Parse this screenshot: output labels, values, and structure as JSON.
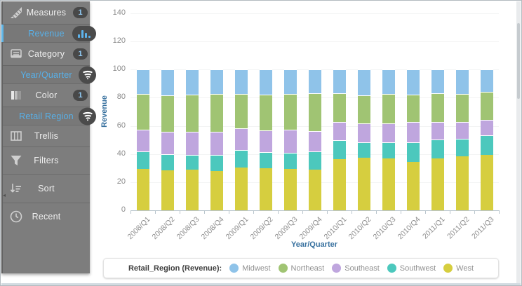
{
  "sidebar": {
    "items": [
      {
        "label": "Measures",
        "badge": "1",
        "type": "main",
        "icon": "ruler-icon"
      },
      {
        "label": "Revenue",
        "type": "sub",
        "selected": true,
        "trail_icon": "bar-chart-icon"
      },
      {
        "label": "Category",
        "badge": "1",
        "type": "main",
        "icon": "tray-icon"
      },
      {
        "label": "Year/Quarter",
        "type": "sub",
        "trail_icon": "swirl-funnel-icon"
      },
      {
        "label": "Color",
        "badge": "1",
        "type": "main",
        "icon": "swatches-icon"
      },
      {
        "label": "Retail Region",
        "type": "sub",
        "trail_icon": "swirl-funnel-icon"
      },
      {
        "label": "Trellis",
        "type": "main",
        "icon": "trellis-icon"
      },
      {
        "label": "Filters",
        "type": "main",
        "icon": "funnel-icon"
      },
      {
        "label": "Sort",
        "type": "main",
        "icon": "sort-icon"
      },
      {
        "label": "Recent",
        "type": "main",
        "icon": "clock-icon"
      }
    ]
  },
  "chart_data": {
    "type": "bar",
    "stacked": true,
    "xlabel": "Year/Quarter",
    "ylabel": "Revenue",
    "ylim": [
      0,
      140
    ],
    "yticks": [
      0,
      20,
      40,
      60,
      80,
      100,
      120,
      140
    ],
    "grid": true,
    "categories": [
      "2008/Q1",
      "2008/Q2",
      "2008/Q3",
      "2008/Q4",
      "2009/Q1",
      "2009/Q2",
      "2009/Q3",
      "2009/Q4",
      "2010/Q1",
      "2010/Q2",
      "2010/Q3",
      "2010/Q4",
      "2011/Q1",
      "2011/Q2",
      "2011/Q3"
    ],
    "series": [
      {
        "name": "West",
        "color": "#d6ce3f",
        "values": [
          29.5,
          28.5,
          29,
          28,
          30.5,
          30,
          29.5,
          29,
          36.5,
          37.5,
          37,
          34.5,
          37,
          38.5,
          39.5
        ]
      },
      {
        "name": "Southwest",
        "color": "#4cc8bd",
        "values": [
          12.5,
          11.5,
          10.5,
          11.5,
          12.5,
          11.5,
          11.5,
          13,
          13.5,
          11,
          11.5,
          14,
          13.5,
          12.5,
          14
        ]
      },
      {
        "name": "Southeast",
        "color": "#bfa6de",
        "values": [
          15.5,
          16,
          16.5,
          16.5,
          15.5,
          15.5,
          16.5,
          14.5,
          13,
          13.5,
          13.5,
          14.5,
          12.5,
          12,
          11
        ]
      },
      {
        "name": "Northeast",
        "color": "#a0c473",
        "values": [
          25,
          25.5,
          26,
          26.5,
          24,
          25,
          25,
          26.5,
          20,
          19.5,
          20.5,
          19,
          20,
          19.5,
          19.5
        ]
      },
      {
        "name": "Midwest",
        "color": "#8fc3e9",
        "values": [
          17.5,
          18.5,
          18,
          17.5,
          17.5,
          18,
          17.5,
          17,
          17,
          18.5,
          17.5,
          18,
          17,
          17.5,
          16
        ]
      }
    ],
    "legend_title": "Retail_Region (Revenue):",
    "legend_order": [
      "Midwest",
      "Northeast",
      "Southeast",
      "Southwest",
      "West"
    ],
    "legend_position": "bottom"
  }
}
